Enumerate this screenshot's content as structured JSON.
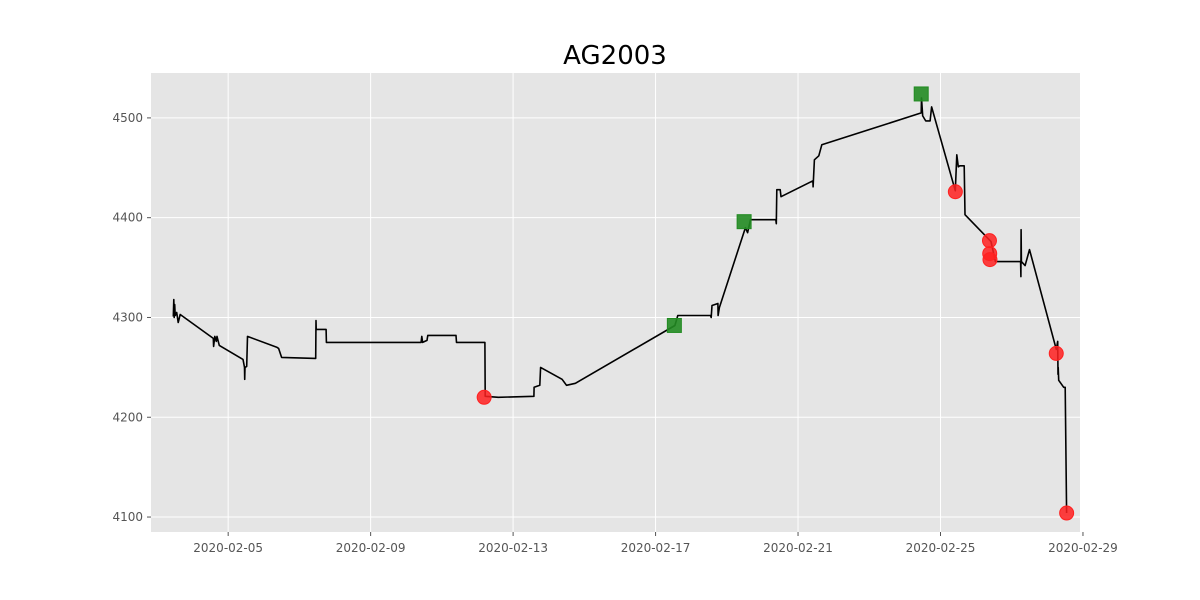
{
  "chart_data": {
    "type": "line",
    "title": "AG2003",
    "xlabel": "",
    "ylabel": "",
    "x_range": [
      "2020-02-02T20:00",
      "2020-02-28T22:00"
    ],
    "y_range": [
      4085,
      4545
    ],
    "grid": true,
    "x_ticks": [
      "2020-02-05",
      "2020-02-09",
      "2020-02-13",
      "2020-02-17",
      "2020-02-21",
      "2020-02-25",
      "2020-02-29"
    ],
    "y_ticks": [
      4100,
      4200,
      4300,
      4400,
      4500
    ],
    "colors": {
      "background": "#e5e5e5",
      "grid": "#ffffff",
      "line": "#000000",
      "buy_marker": "#228b22",
      "sell_marker": "#ff2020"
    },
    "series": [
      {
        "points": [
          [
            "2020-02-03T11:00",
            4301
          ],
          [
            "2020-02-03T11:20",
            4318
          ],
          [
            "2020-02-03T11:40",
            4300
          ],
          [
            "2020-02-03T12:00",
            4313
          ],
          [
            "2020-02-03T12:20",
            4302
          ],
          [
            "2020-02-03T13:20",
            4305
          ],
          [
            "2020-02-03T14:20",
            4295
          ],
          [
            "2020-02-03T15:40",
            4303
          ],
          [
            "2020-02-04T14:00",
            4279
          ],
          [
            "2020-02-04T14:10",
            4271
          ],
          [
            "2020-02-04T15:00",
            4281
          ],
          [
            "2020-02-04T16:00",
            4276
          ],
          [
            "2020-02-04T16:30",
            4281
          ],
          [
            "2020-02-04T18:00",
            4272
          ],
          [
            "2020-02-05T10:00",
            4258
          ],
          [
            "2020-02-05T11:00",
            4250
          ],
          [
            "2020-02-05T11:10",
            4238
          ],
          [
            "2020-02-05T11:20",
            4250
          ],
          [
            "2020-02-05T12:30",
            4251
          ],
          [
            "2020-02-05T13:00",
            4281
          ],
          [
            "2020-02-06T09:00",
            4270
          ],
          [
            "2020-02-06T10:00",
            4269
          ],
          [
            "2020-02-06T12:00",
            4260
          ],
          [
            "2020-02-07T11:00",
            4259
          ],
          [
            "2020-02-07T11:10",
            4297
          ],
          [
            "2020-02-07T11:20",
            4288
          ],
          [
            "2020-02-07T18:00",
            4288
          ],
          [
            "2020-02-07T18:10",
            4275
          ],
          [
            "2020-02-10T10:00",
            4275
          ],
          [
            "2020-02-10T10:30",
            4281
          ],
          [
            "2020-02-10T11:00",
            4275
          ],
          [
            "2020-02-10T14:00",
            4277
          ],
          [
            "2020-02-10T14:30",
            4282
          ],
          [
            "2020-02-11T09:30",
            4282
          ],
          [
            "2020-02-11T09:50",
            4275
          ],
          [
            "2020-02-12T05:00",
            4275
          ],
          [
            "2020-02-12T05:10",
            4221
          ],
          [
            "2020-02-12T14:00",
            4220
          ],
          [
            "2020-02-13T14:00",
            4221
          ],
          [
            "2020-02-13T14:10",
            4230
          ],
          [
            "2020-02-13T18:00",
            4232
          ],
          [
            "2020-02-13T18:30",
            4250
          ],
          [
            "2020-02-14T09:00",
            4238
          ],
          [
            "2020-02-14T12:00",
            4232
          ],
          [
            "2020-02-14T18:00",
            4234
          ],
          [
            "2020-02-17T13:00",
            4292
          ],
          [
            "2020-02-17T15:00",
            4302
          ],
          [
            "2020-02-18T13:00",
            4302
          ],
          [
            "2020-02-18T13:30",
            4300
          ],
          [
            "2020-02-18T14:00",
            4312
          ],
          [
            "2020-02-18T18:00",
            4314
          ],
          [
            "2020-02-18T18:10",
            4302
          ],
          [
            "2020-02-18T19:00",
            4310
          ],
          [
            "2020-02-19T12:30",
            4390
          ],
          [
            "2020-02-19T14:00",
            4385
          ],
          [
            "2020-02-19T16:00",
            4398
          ],
          [
            "2020-02-20T09:00",
            4398
          ],
          [
            "2020-02-20T09:20",
            4394
          ],
          [
            "2020-02-20T09:40",
            4428
          ],
          [
            "2020-02-20T12:00",
            4428
          ],
          [
            "2020-02-20T12:30",
            4421
          ],
          [
            "2020-02-21T10:00",
            4437
          ],
          [
            "2020-02-21T10:10",
            4431
          ],
          [
            "2020-02-21T11:00",
            4458
          ],
          [
            "2020-02-21T14:00",
            4462
          ],
          [
            "2020-02-21T16:00",
            4473
          ],
          [
            "2020-02-24T11:00",
            4505
          ],
          [
            "2020-02-24T11:10",
            4520
          ],
          [
            "2020-02-24T12:00",
            4502
          ],
          [
            "2020-02-24T14:00",
            4497
          ],
          [
            "2020-02-24T17:00",
            4497
          ],
          [
            "2020-02-24T18:00",
            4511
          ],
          [
            "2020-02-25T10:00",
            4427
          ],
          [
            "2020-02-25T11:00",
            4463
          ],
          [
            "2020-02-25T12:00",
            4451
          ],
          [
            "2020-02-25T13:00",
            4452
          ],
          [
            "2020-02-25T16:00",
            4452
          ],
          [
            "2020-02-25T16:30",
            4403
          ],
          [
            "2020-02-26T10:00",
            4376
          ],
          [
            "2020-02-26T13:00",
            4356
          ],
          [
            "2020-02-27T06:00",
            4356
          ],
          [
            "2020-02-27T06:10",
            4341
          ],
          [
            "2020-02-27T06:20",
            4388
          ],
          [
            "2020-02-27T06:30",
            4356
          ],
          [
            "2020-02-27T09:00",
            4352
          ],
          [
            "2020-02-27T12:00",
            4368
          ],
          [
            "2020-02-28T06:00",
            4268
          ],
          [
            "2020-02-28T07:00",
            4276
          ],
          [
            "2020-02-28T07:10",
            4243
          ],
          [
            "2020-02-28T07:20",
            4250
          ],
          [
            "2020-02-28T07:40",
            4237
          ],
          [
            "2020-02-28T11:00",
            4230
          ],
          [
            "2020-02-28T12:00",
            4230
          ],
          [
            "2020-02-28T13:00",
            4104
          ]
        ]
      }
    ],
    "markers": [
      {
        "kind": "buy",
        "shape": "square",
        "x": "2020-02-17T12:40",
        "y": 4292
      },
      {
        "kind": "buy",
        "shape": "square",
        "x": "2020-02-19T11:40",
        "y": 4396
      },
      {
        "kind": "buy",
        "shape": "square",
        "x": "2020-02-24T11:00",
        "y": 4524
      },
      {
        "kind": "sell",
        "shape": "circle",
        "x": "2020-02-12T04:30",
        "y": 4220
      },
      {
        "kind": "sell",
        "shape": "circle",
        "x": "2020-02-25T10:00",
        "y": 4426
      },
      {
        "kind": "sell",
        "shape": "circle",
        "x": "2020-02-26T09:00",
        "y": 4377
      },
      {
        "kind": "sell",
        "shape": "circle",
        "x": "2020-02-26T09:10",
        "y": 4364
      },
      {
        "kind": "sell",
        "shape": "circle",
        "x": "2020-02-26T09:20",
        "y": 4358
      },
      {
        "kind": "sell",
        "shape": "circle",
        "x": "2020-02-28T06:00",
        "y": 4264
      },
      {
        "kind": "sell",
        "shape": "circle",
        "x": "2020-02-28T13:00",
        "y": 4104
      }
    ]
  }
}
